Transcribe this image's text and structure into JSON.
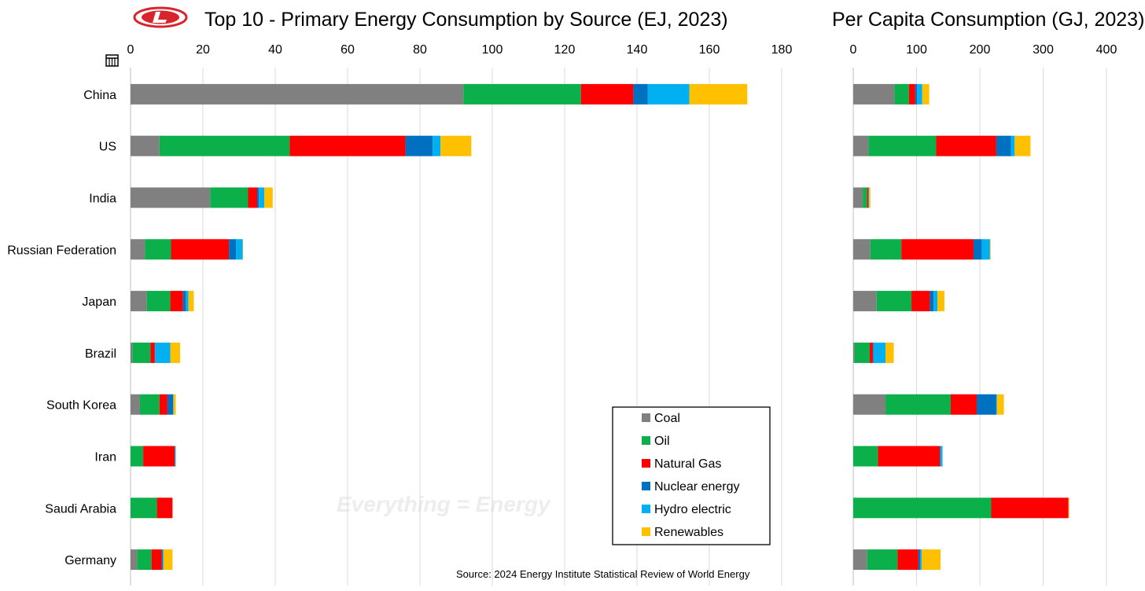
{
  "colors": {
    "Coal": "#808080",
    "Oil": "#0cb04a",
    "Natural Gas": "#fe0000",
    "Nuclear energy": "#0070c0",
    "Hydro electric": "#00b0f0",
    "Renewables": "#ffc000",
    "grid": "#d9d9d9",
    "logo": "#d8242a"
  },
  "logo_icon": "red-oval-L-logo",
  "small_icon": "table-icon",
  "watermark": "Everything = Energy",
  "source": "Source: 2024 Energy Institute Statistical Review of World Energy",
  "chart_data": [
    {
      "type": "bar",
      "orientation": "horizontal",
      "stacked": true,
      "title": "Top 10 - Primary Energy Consumption by Source (EJ, 2023)",
      "xlabel": "",
      "ylabel": "",
      "xlim": [
        0,
        180
      ],
      "xticks": [
        "0",
        "20",
        "40",
        "60",
        "80",
        "100",
        "120",
        "140",
        "160",
        "180"
      ],
      "grid": true,
      "legend_position": "bottom-right",
      "categories": [
        "China",
        "US",
        "India",
        "Russian Federation",
        "Japan",
        "Brazil",
        "South Korea",
        "Iran",
        "Saudi Arabia",
        "Germany"
      ],
      "series": [
        {
          "name": "Coal",
          "values": [
            92,
            8,
            22,
            4,
            4.5,
            0.5,
            2.6,
            0,
            0,
            1.8
          ]
        },
        {
          "name": "Oil",
          "values": [
            32.5,
            36,
            10.5,
            7.2,
            6.5,
            5,
            5.4,
            3.5,
            7.3,
            4
          ]
        },
        {
          "name": "Natural Gas",
          "values": [
            14.5,
            32,
            2.5,
            16,
            3.5,
            1.2,
            2.2,
            8.7,
            4.3,
            2.8
          ]
        },
        {
          "name": "Nuclear energy",
          "values": [
            4,
            7.5,
            0.5,
            2,
            0.8,
            0.1,
            1.6,
            0.1,
            0,
            0.3
          ]
        },
        {
          "name": "Hydro electric",
          "values": [
            11.5,
            2.2,
            1.5,
            1.8,
            0.7,
            4.2,
            0.1,
            0.2,
            0,
            0.2
          ]
        },
        {
          "name": "Renewables",
          "values": [
            16,
            8.5,
            2.3,
            0.1,
            1.5,
            2.7,
            0.6,
            0,
            0,
            2.5
          ]
        }
      ]
    },
    {
      "type": "bar",
      "orientation": "horizontal",
      "stacked": true,
      "title": "Per Capita Consumption (GJ, 2023)",
      "xlabel": "",
      "ylabel": "",
      "xlim": [
        0,
        400
      ],
      "xticks": [
        "0",
        "100",
        "200",
        "300",
        "400"
      ],
      "grid": true,
      "categories": [
        "China",
        "US",
        "India",
        "Russian Federation",
        "Japan",
        "Brazil",
        "South Korea",
        "Iran",
        "Saudi Arabia",
        "Germany"
      ],
      "series": [
        {
          "name": "Coal",
          "values": [
            65,
            24,
            15,
            27,
            37,
            2,
            51,
            0,
            0,
            22
          ]
        },
        {
          "name": "Oil",
          "values": [
            23,
            107,
            7,
            49,
            55,
            24,
            103,
            39,
            218,
            48
          ]
        },
        {
          "name": "Natural Gas",
          "values": [
            10,
            95,
            2,
            114,
            29,
            5,
            41,
            98,
            122,
            33
          ]
        },
        {
          "name": "Nuclear energy",
          "values": [
            3,
            23,
            0,
            13,
            6,
            1,
            31,
            1,
            0,
            3
          ]
        },
        {
          "name": "Hydro electric",
          "values": [
            8,
            6,
            1,
            13,
            6,
            19,
            1,
            3,
            0,
            2
          ]
        },
        {
          "name": "Renewables",
          "values": [
            11,
            25,
            2,
            1,
            11,
            13,
            11,
            0,
            1,
            30
          ]
        }
      ]
    }
  ]
}
